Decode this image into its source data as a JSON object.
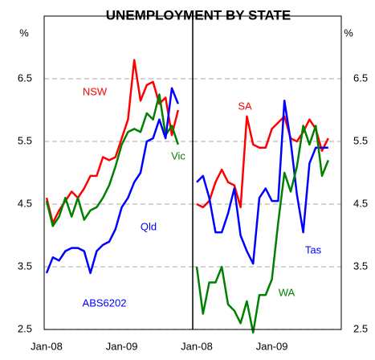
{
  "chart_data": [
    {
      "type": "line",
      "title": "UNEMPLOYMENT BY STATE",
      "ylabel": "%",
      "note": "ABS6202",
      "categories": [
        "Jan-08",
        null,
        null,
        null,
        null,
        null,
        null,
        null,
        null,
        null,
        null,
        null,
        "Jan-09",
        null,
        null,
        null,
        null,
        null,
        null,
        null,
        null,
        null
      ],
      "series": [
        {
          "name": "NSW",
          "color": "#ff0000",
          "values": [
            4.6,
            4.2,
            4.4,
            4.55,
            4.7,
            4.6,
            4.75,
            4.95,
            4.95,
            5.25,
            5.2,
            5.25,
            5.55,
            5.85,
            6.8,
            6.15,
            6.4,
            6.45,
            6.1,
            6.2,
            5.6,
            6.0
          ]
        },
        {
          "name": "Vic",
          "color": "#008000",
          "values": [
            4.55,
            4.15,
            4.3,
            4.6,
            4.3,
            4.6,
            4.25,
            4.4,
            4.45,
            4.6,
            4.8,
            5.1,
            5.45,
            5.65,
            5.7,
            5.65,
            5.95,
            5.85,
            6.25,
            5.6,
            5.75,
            5.45
          ]
        },
        {
          "name": "Qld",
          "color": "#0000ff",
          "values": [
            3.4,
            3.65,
            3.6,
            3.75,
            3.8,
            3.8,
            3.75,
            3.4,
            3.75,
            3.85,
            3.9,
            4.1,
            4.45,
            4.6,
            4.85,
            5.0,
            5.5,
            5.55,
            5.85,
            5.55,
            6.35,
            6.1
          ]
        }
      ],
      "ylim": [
        2.5,
        7.5
      ],
      "yticks": [
        2.5,
        3.5,
        4.5,
        5.5,
        6.5
      ],
      "grid": true
    },
    {
      "type": "line",
      "ylabel": "%",
      "categories": [
        "Jan-08",
        null,
        null,
        null,
        null,
        null,
        null,
        null,
        null,
        null,
        null,
        null,
        "Jan-09",
        null,
        null,
        null,
        null,
        null,
        null,
        null,
        null,
        null
      ],
      "series": [
        {
          "name": "SA",
          "color": "#ff0000",
          "values": [
            4.5,
            4.45,
            4.55,
            4.85,
            5.05,
            4.85,
            4.8,
            4.45,
            5.9,
            5.45,
            5.4,
            5.4,
            5.7,
            5.8,
            5.9,
            5.55,
            5.5,
            5.65,
            5.85,
            5.7,
            5.35,
            5.55
          ]
        },
        {
          "name": "Tas",
          "color": "#0000ff",
          "values": [
            4.85,
            4.95,
            4.6,
            4.05,
            4.05,
            4.35,
            4.75,
            4.0,
            3.75,
            3.55,
            4.6,
            4.75,
            4.55,
            4.55,
            6.15,
            5.5,
            4.65,
            4.05,
            5.15,
            5.4,
            5.4,
            5.4
          ]
        },
        {
          "name": "WA",
          "color": "#008000",
          "values": [
            3.5,
            2.75,
            3.25,
            3.25,
            3.5,
            2.9,
            2.8,
            2.6,
            2.95,
            2.45,
            3.05,
            3.05,
            3.3,
            4.2,
            5.0,
            4.7,
            5.1,
            5.75,
            5.45,
            5.75,
            4.95,
            5.2
          ]
        }
      ],
      "ylim": [
        2.5,
        7.5
      ],
      "yticks": [
        2.5,
        3.5,
        4.5,
        5.5,
        6.5
      ],
      "grid": true
    }
  ]
}
